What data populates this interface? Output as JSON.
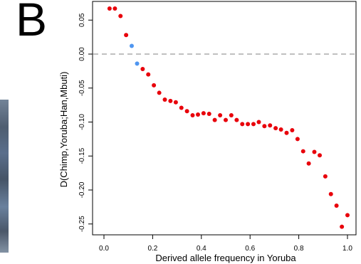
{
  "panel_label": "B",
  "colors": {
    "red": "#e8000b",
    "blue": "#4f96f0",
    "zero_line": "#c0c0c0",
    "axis": "#000000"
  },
  "chart_data": {
    "type": "scatter",
    "title": "",
    "xlabel": "Derived allele frequency in Yoruba",
    "ylabel": "D(Chimp,Yoruba;Han,Mbuti)",
    "xlim": [
      0.0,
      1.0
    ],
    "ylim": [
      -0.265,
      0.075
    ],
    "x_ticks": [
      "0.0",
      "0.2",
      "0.4",
      "0.6",
      "0.8",
      "1.0"
    ],
    "y_ticks": [
      "-0.25",
      "-0.20",
      "-0.15",
      "-0.10",
      "-0.05",
      "0.00",
      "0.05"
    ],
    "reference_line": {
      "y": 0.0,
      "style": "dashed"
    },
    "grid": false,
    "legend": "none",
    "series": [
      {
        "color": "#e8000b",
        "points": [
          [
            0.023,
            0.067
          ],
          [
            0.045,
            0.067
          ],
          [
            0.068,
            0.056
          ],
          [
            0.091,
            0.028
          ],
          [
            0.159,
            -0.022
          ],
          [
            0.182,
            -0.03
          ],
          [
            0.205,
            -0.046
          ],
          [
            0.227,
            -0.057
          ],
          [
            0.25,
            -0.067
          ],
          [
            0.273,
            -0.069
          ],
          [
            0.295,
            -0.071
          ],
          [
            0.318,
            -0.079
          ],
          [
            0.341,
            -0.084
          ],
          [
            0.364,
            -0.09
          ],
          [
            0.386,
            -0.089
          ],
          [
            0.409,
            -0.087
          ],
          [
            0.432,
            -0.088
          ],
          [
            0.455,
            -0.097
          ],
          [
            0.477,
            -0.09
          ],
          [
            0.5,
            -0.097
          ],
          [
            0.523,
            -0.09
          ],
          [
            0.545,
            -0.097
          ],
          [
            0.568,
            -0.103
          ],
          [
            0.591,
            -0.103
          ],
          [
            0.614,
            -0.103
          ],
          [
            0.636,
            -0.1
          ],
          [
            0.659,
            -0.106
          ],
          [
            0.682,
            -0.105
          ],
          [
            0.705,
            -0.109
          ],
          [
            0.727,
            -0.111
          ],
          [
            0.75,
            -0.116
          ],
          [
            0.773,
            -0.112
          ],
          [
            0.795,
            -0.125
          ],
          [
            0.818,
            -0.143
          ],
          [
            0.841,
            -0.161
          ],
          [
            0.864,
            -0.144
          ],
          [
            0.886,
            -0.149
          ],
          [
            0.909,
            -0.18
          ],
          [
            0.932,
            -0.206
          ],
          [
            0.955,
            -0.223
          ],
          [
            0.977,
            -0.254
          ],
          [
            1.0,
            -0.237
          ]
        ]
      },
      {
        "color": "#4f96f0",
        "points": [
          [
            0.114,
            0.012
          ],
          [
            0.136,
            -0.014
          ]
        ]
      }
    ]
  }
}
